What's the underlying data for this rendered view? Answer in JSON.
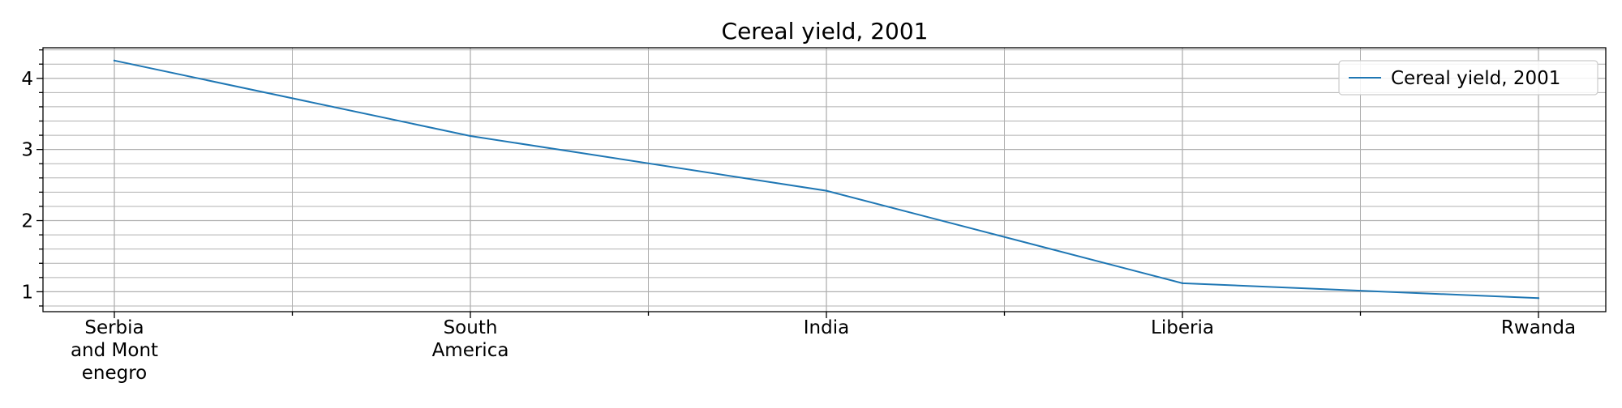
{
  "chart_data": {
    "type": "line",
    "title": "Cereal yield, 2001",
    "xlabel": "",
    "ylabel": "",
    "categories": [
      "Serbia\nand Mont\nenegro",
      "South\nAmerica",
      "India",
      "Liberia",
      "Rwanda"
    ],
    "series": [
      {
        "name": "Cereal yield, 2001",
        "values": [
          4.25,
          3.19,
          2.42,
          1.12,
          0.91
        ],
        "color": "#1f77b4"
      }
    ],
    "ylim": [
      0.72,
      4.43
    ],
    "yticks": [
      1,
      2,
      3,
      4
    ],
    "grid": true,
    "minor_grid": true,
    "legend": "top-right"
  }
}
